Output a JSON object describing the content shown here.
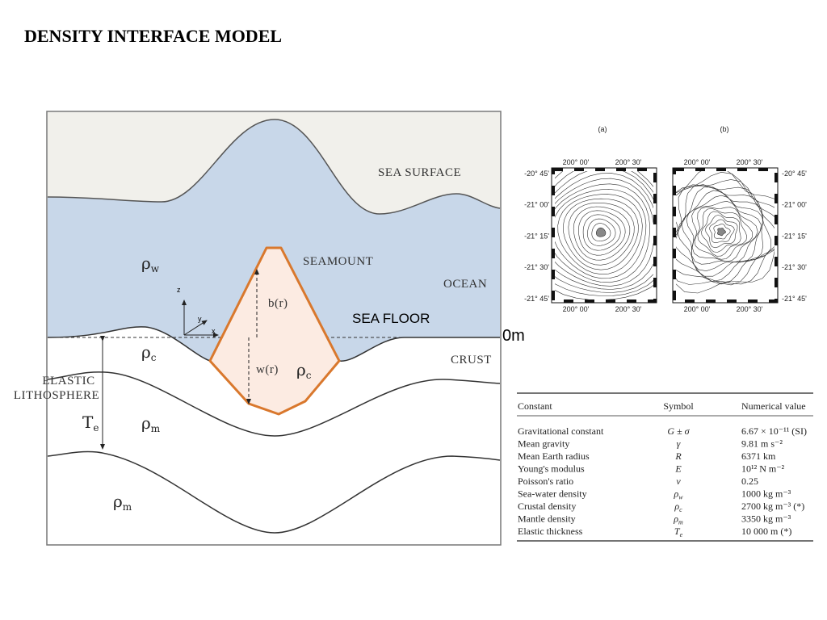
{
  "title": "DENSITY INTERFACE MODEL",
  "diagram": {
    "layers": [
      "SEA SURFACE",
      "SEAMOUNT",
      "OCEAN",
      "SEA FLOOR",
      "CRUST"
    ],
    "elastic_lithosphere": [
      "ELASTIC",
      "LITHOSPHERE"
    ],
    "densities": [
      {
        "symbol": "ρ",
        "sub": "w"
      },
      {
        "symbol": "ρ",
        "sub": "c"
      },
      {
        "symbol": "ρ",
        "sub": "c"
      },
      {
        "symbol": "ρ",
        "sub": "m"
      },
      {
        "symbol": "ρ",
        "sub": "m"
      }
    ],
    "thickness": {
      "symbol": "T",
      "sub": "e"
    },
    "functions": [
      "b(r)",
      "w(r)"
    ],
    "axes": [
      "z",
      "y",
      "x"
    ],
    "reference_level": "0m"
  },
  "maps": {
    "panels": [
      "(a)",
      "(b)"
    ],
    "longitudes": [
      "200° 00'",
      "200° 30'"
    ],
    "latitudes": [
      "-20° 45'",
      "-21° 00'",
      "-21° 15'",
      "-21° 30'",
      "-21° 45'"
    ]
  },
  "table": {
    "header": [
      "Constant",
      "Symbol",
      "Numerical value"
    ],
    "rows": [
      {
        "constant": "Gravitational constant",
        "symbol": "G ± σ",
        "value": "6.67 × 10⁻¹¹ (SI)"
      },
      {
        "constant": "Mean gravity",
        "symbol": "γ",
        "value": "9.81 m s⁻²"
      },
      {
        "constant": "Mean Earth radius",
        "symbol": "R",
        "value": "6371 km"
      },
      {
        "constant": "Young's modulus",
        "symbol": "E",
        "value": "10¹² N m⁻²"
      },
      {
        "constant": "Poisson's ratio",
        "symbol": "ν",
        "value": "0.25"
      },
      {
        "constant": "Sea-water density",
        "symbol": "ρ",
        "sub": "w",
        "value": "1000 kg m⁻³"
      },
      {
        "constant": "Crustal density",
        "symbol": "ρ",
        "sub": "c",
        "value": "2700 kg m⁻³ (*)"
      },
      {
        "constant": "Mantle density",
        "symbol": "ρ",
        "sub": "m",
        "value": "3350 kg m⁻³"
      },
      {
        "constant": "Elastic thickness",
        "symbol": "T",
        "sub": "e",
        "value": "10 000 m (*)"
      }
    ]
  }
}
